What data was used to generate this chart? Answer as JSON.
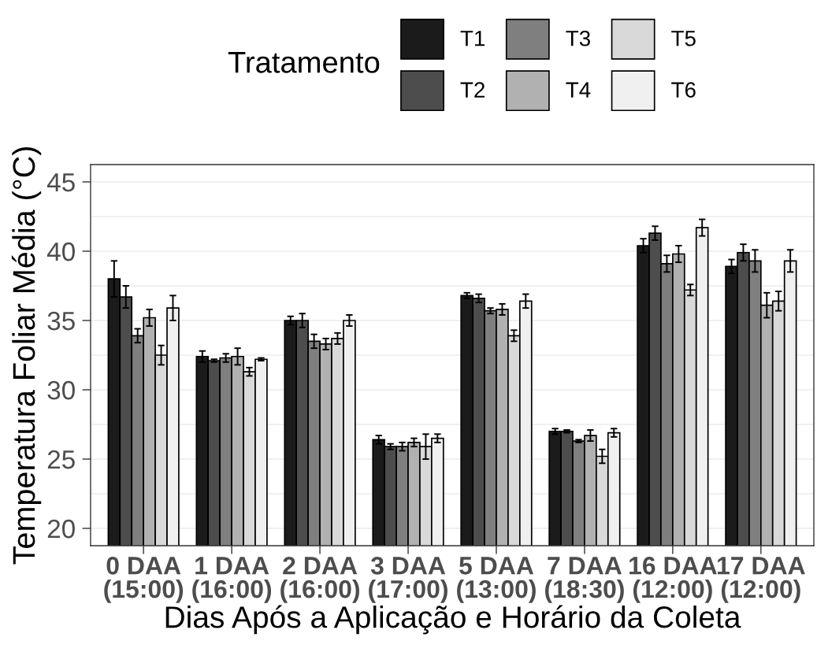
{
  "chart_data": {
    "type": "bar",
    "xlabel": "Dias Após a Aplicação e Horário da Coleta",
    "ylabel": "Temperatura Foliar Média (°C)",
    "legend_title": "Tratamento",
    "categories": [
      "0 DAA\n(15:00)",
      "1 DAA\n(16:00)",
      "2 DAA\n(16:00)",
      "3 DAA\n(17:00)",
      "5 DAA\n(13:00)",
      "7 DAA\n(18:30)",
      "16 DAA\n(12:00)",
      "17 DAA\n(12:00)"
    ],
    "series": [
      {
        "name": "T1",
        "color": "#1b1b1b",
        "values": [
          38.0,
          32.4,
          35.0,
          26.4,
          36.8,
          27.0,
          40.4,
          38.9
        ],
        "errors": [
          1.3,
          0.4,
          0.3,
          0.3,
          0.2,
          0.2,
          0.5,
          0.5
        ]
      },
      {
        "name": "T2",
        "color": "#4d4d4d",
        "values": [
          36.7,
          32.1,
          35.0,
          25.9,
          36.6,
          27.0,
          41.3,
          39.9
        ],
        "errors": [
          0.8,
          0.1,
          0.5,
          0.2,
          0.3,
          0.1,
          0.5,
          0.6
        ]
      },
      {
        "name": "T3",
        "color": "#7f7f7f",
        "values": [
          33.9,
          32.3,
          33.5,
          25.9,
          35.7,
          26.3,
          39.1,
          39.3
        ],
        "errors": [
          0.5,
          0.3,
          0.5,
          0.3,
          0.2,
          0.1,
          0.6,
          0.8
        ]
      },
      {
        "name": "T4",
        "color": "#b1b1b1",
        "values": [
          35.2,
          32.4,
          33.3,
          26.2,
          35.8,
          26.7,
          39.8,
          36.1
        ],
        "errors": [
          0.6,
          0.6,
          0.4,
          0.3,
          0.4,
          0.4,
          0.6,
          0.9
        ]
      },
      {
        "name": "T5",
        "color": "#d9d9d9",
        "values": [
          32.5,
          31.3,
          33.7,
          25.9,
          33.9,
          25.2,
          37.2,
          36.4
        ],
        "errors": [
          0.7,
          0.3,
          0.4,
          0.9,
          0.4,
          0.5,
          0.4,
          0.7
        ]
      },
      {
        "name": "T6",
        "color": "#f0f0f0",
        "values": [
          35.9,
          32.2,
          35.0,
          26.5,
          36.4,
          26.9,
          41.7,
          39.3
        ],
        "errors": [
          0.9,
          0.1,
          0.4,
          0.3,
          0.5,
          0.3,
          0.6,
          0.8
        ]
      }
    ],
    "ylim": [
      18.75,
      46.25
    ],
    "yticks": [
      20,
      25,
      30,
      35,
      40,
      45
    ],
    "grid": "y",
    "legend": "top"
  }
}
